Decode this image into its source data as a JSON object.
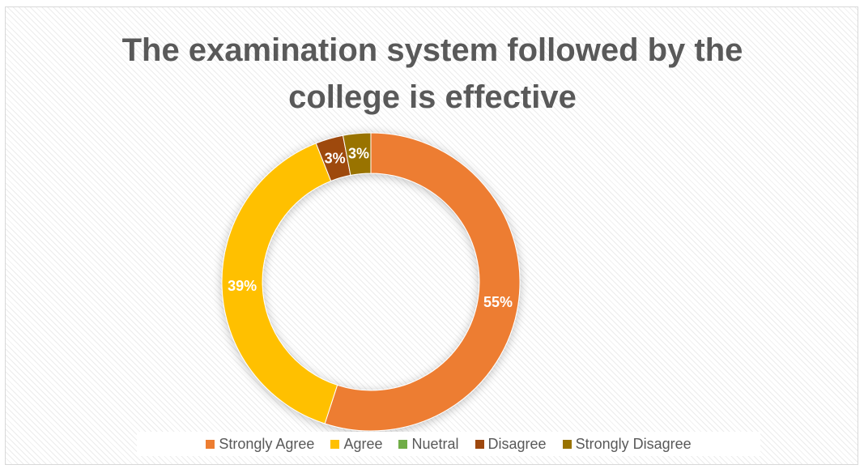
{
  "chart_data": {
    "type": "pie",
    "variant": "donut",
    "title": "The examination system followed by the college is effective",
    "title_lines": [
      "The examination system followed by the",
      "college is effective"
    ],
    "legend_position": "bottom",
    "categories": [
      "Strongly Agree",
      "Agree",
      "Nuetral",
      "Disagree",
      "Strongly Disagree"
    ],
    "values": [
      55,
      39,
      0,
      3,
      3
    ],
    "labels": [
      "55%",
      "39%",
      "",
      "3%",
      "3%"
    ],
    "colors": [
      "#ED7D31",
      "#FFC000",
      "#70AD47",
      "#9E480E",
      "#997300"
    ]
  }
}
